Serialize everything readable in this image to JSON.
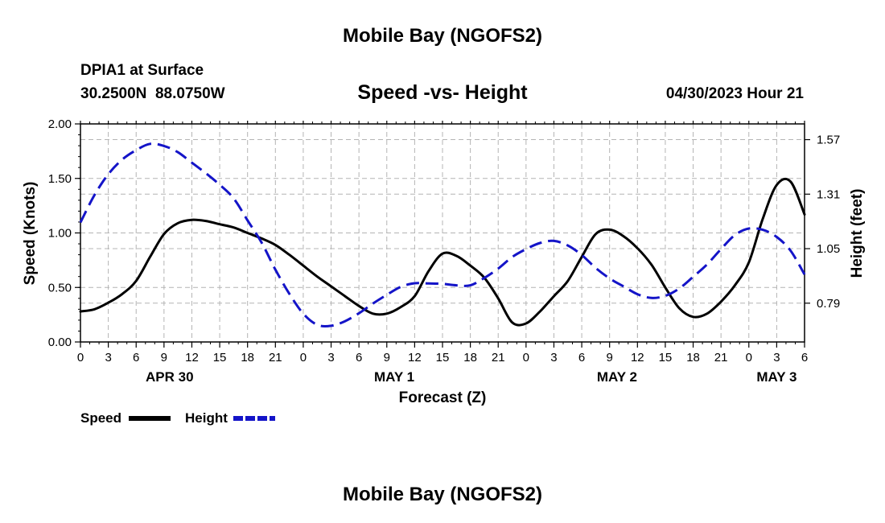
{
  "page": {
    "title": "Mobile Bay (NGOFS2)",
    "footer_title": "Mobile Bay (NGOFS2)",
    "station": "DPIA1 at Surface",
    "coords": "30.2500N  88.0750W",
    "chart_title": "Speed -vs- Height",
    "timestamp": "04/30/2023 Hour 21"
  },
  "chart_data": {
    "type": "line",
    "title": "Speed -vs- Height",
    "xlabel": "Forecast (Z)",
    "ylabel": "Speed (Knots)",
    "y2label": "Height (feet)",
    "x_hours_range": [
      0,
      78
    ],
    "ylim": [
      0,
      2.0
    ],
    "y2lim": [
      0.605,
      1.645
    ],
    "y_ticks": [
      "0.00",
      "0.50",
      "1.00",
      "1.50",
      "2.00"
    ],
    "y2_ticks": [
      "0.79",
      "1.05",
      "1.31",
      "1.57"
    ],
    "x_tick_labels": [
      "0",
      "3",
      "6",
      "9",
      "12",
      "15",
      "18",
      "21",
      "0",
      "3",
      "6",
      "9",
      "12",
      "15",
      "18",
      "21",
      "0",
      "3",
      "6",
      "9",
      "12",
      "15",
      "18",
      "21",
      "0",
      "3",
      "6"
    ],
    "date_labels": [
      {
        "label": "APR 30",
        "hour": 9.6
      },
      {
        "label": "MAY 1",
        "hour": 33.8
      },
      {
        "label": "MAY 2",
        "hour": 57.8
      },
      {
        "label": "MAY 3",
        "hour": 75.0
      }
    ],
    "grid": true,
    "series": [
      {
        "name": "Speed",
        "axis": "left",
        "color": "#000000",
        "dash": "solid",
        "x": [
          0,
          1.5,
          3,
          4.5,
          6,
          7.5,
          9,
          10.5,
          12,
          13.5,
          15,
          16.5,
          18,
          19.5,
          21,
          22.5,
          24,
          25.5,
          27,
          28.5,
          30,
          31.5,
          33,
          34.5,
          36,
          37.5,
          39,
          40.5,
          42,
          43.5,
          45,
          46.5,
          48,
          49.5,
          51,
          52.5,
          54,
          55.5,
          57,
          58.5,
          60,
          61.5,
          63,
          64.5,
          66,
          67.5,
          69,
          70.5,
          72,
          73.5,
          75,
          76.5,
          78
        ],
        "values": [
          0.28,
          0.3,
          0.36,
          0.44,
          0.56,
          0.78,
          0.99,
          1.09,
          1.12,
          1.11,
          1.08,
          1.05,
          1.0,
          0.95,
          0.89,
          0.8,
          0.7,
          0.6,
          0.51,
          0.42,
          0.33,
          0.26,
          0.26,
          0.32,
          0.42,
          0.65,
          0.81,
          0.79,
          0.7,
          0.59,
          0.4,
          0.18,
          0.17,
          0.28,
          0.42,
          0.56,
          0.78,
          0.99,
          1.03,
          0.97,
          0.86,
          0.71,
          0.5,
          0.31,
          0.23,
          0.26,
          0.37,
          0.52,
          0.73,
          1.13,
          1.44,
          1.47,
          1.17
        ]
      },
      {
        "name": "Height",
        "axis": "right",
        "color": "#1414c8",
        "dash": "dashed",
        "x": [
          0,
          1.5,
          3,
          4.5,
          6,
          7.5,
          9,
          10.5,
          12,
          13.5,
          15,
          16.5,
          18,
          19.5,
          21,
          22.5,
          24,
          25.5,
          27,
          28.5,
          30,
          31.5,
          33,
          34.5,
          36,
          37.5,
          39,
          40.5,
          42,
          43.5,
          45,
          46.5,
          48,
          49.5,
          51,
          52.5,
          54,
          55.5,
          57,
          58.5,
          60,
          61.5,
          63,
          64.5,
          66,
          67.5,
          69,
          70.5,
          72,
          73.5,
          75,
          76.5,
          78
        ],
        "values": [
          1.175,
          1.305,
          1.405,
          1.475,
          1.52,
          1.55,
          1.54,
          1.51,
          1.46,
          1.41,
          1.355,
          1.29,
          1.185,
          1.08,
          0.95,
          0.835,
          0.74,
          0.687,
          0.682,
          0.704,
          0.742,
          0.788,
          0.83,
          0.868,
          0.885,
          0.884,
          0.882,
          0.875,
          0.875,
          0.91,
          0.955,
          1.01,
          1.048,
          1.077,
          1.087,
          1.065,
          1.02,
          0.958,
          0.908,
          0.87,
          0.833,
          0.815,
          0.825,
          0.86,
          0.916,
          0.975,
          1.048,
          1.115,
          1.146,
          1.14,
          1.106,
          1.04,
          0.927
        ]
      }
    ],
    "legend": [
      {
        "label": "Speed",
        "color": "#000000",
        "dash": "solid"
      },
      {
        "label": "Height",
        "color": "#1414c8",
        "dash": "dashed"
      }
    ]
  }
}
